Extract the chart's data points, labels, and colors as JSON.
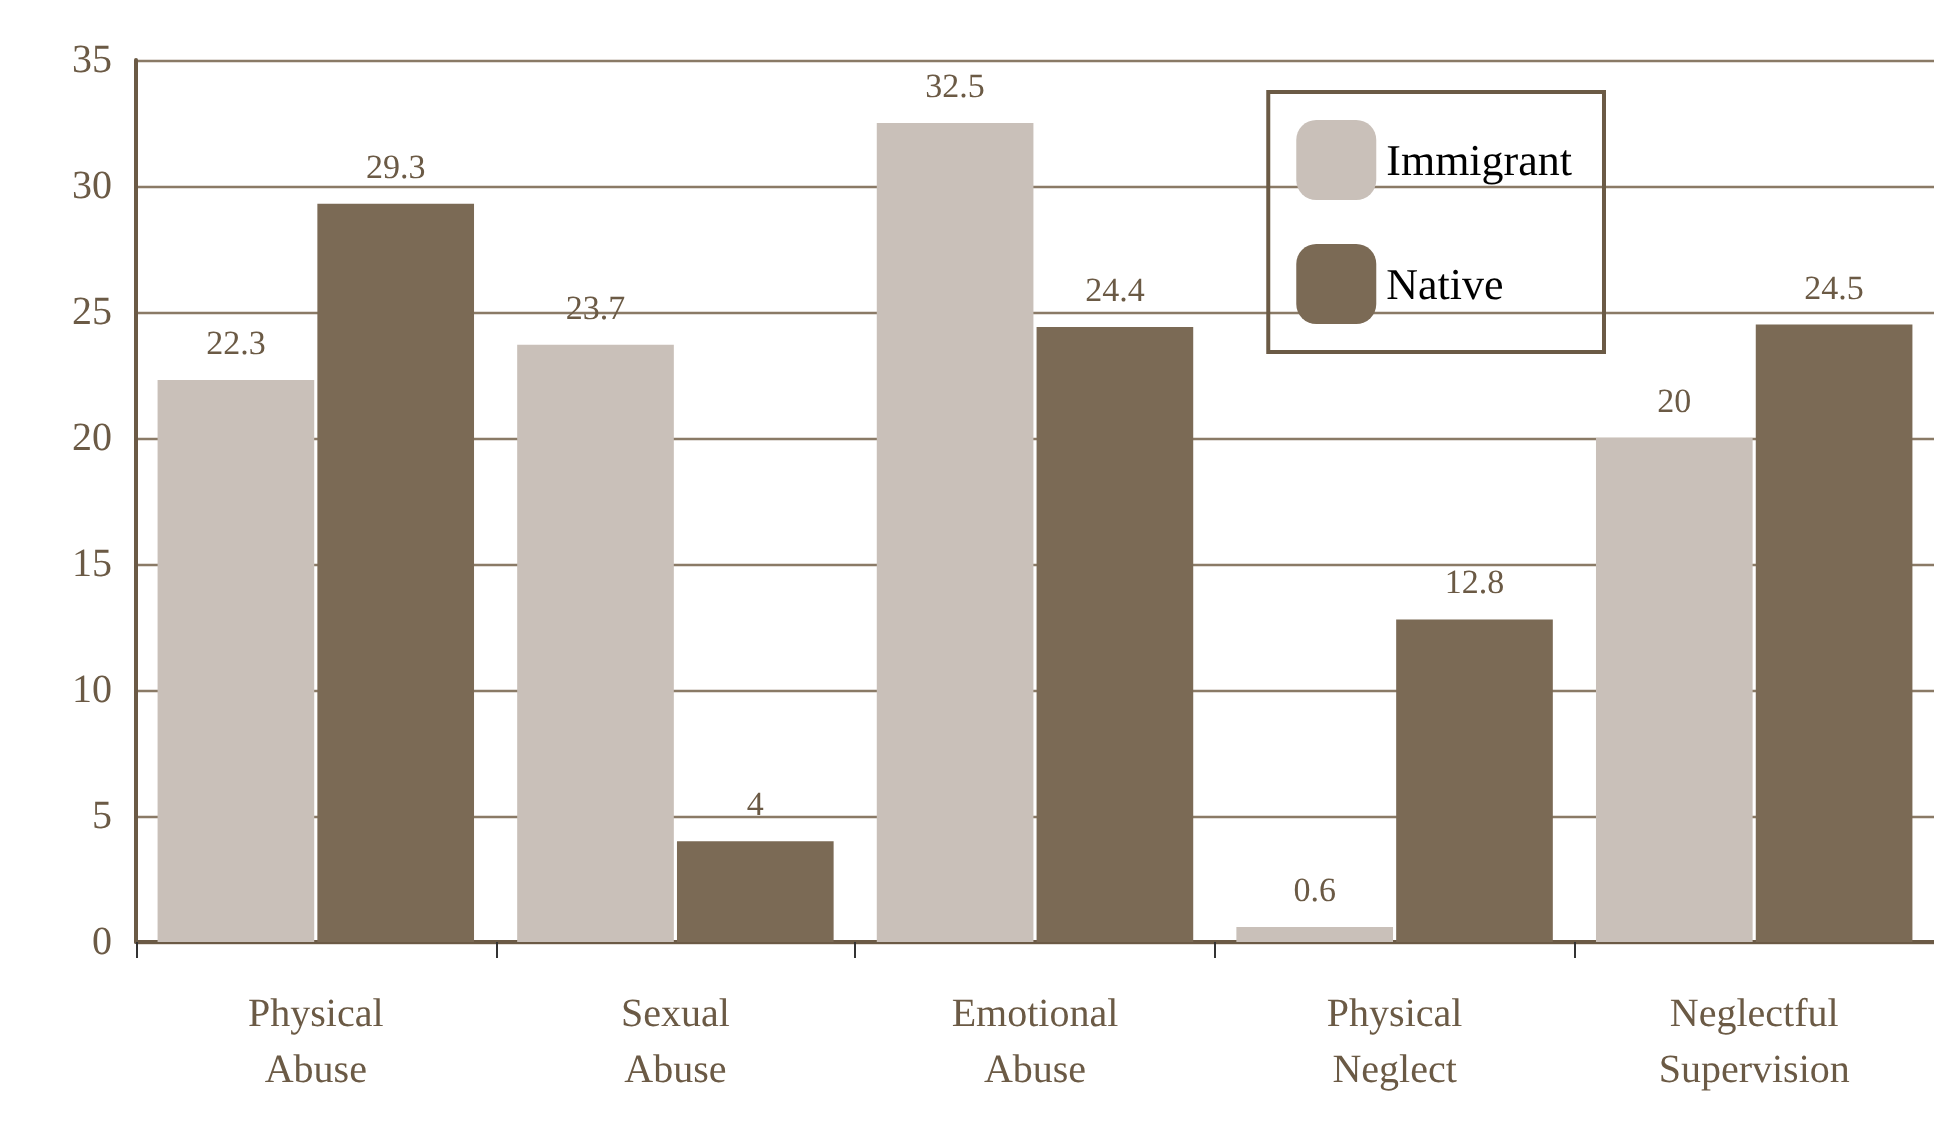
{
  "chart_data": {
    "type": "bar",
    "categories": [
      "Physical Abuse",
      "Sexual Abuse",
      "Emotional Abuse",
      "Physical Neglect",
      "Neglectful Supervision"
    ],
    "series": [
      {
        "name": "Immigrant",
        "color": "#c9c0b9",
        "values": [
          22.3,
          23.7,
          32.5,
          0.6,
          20
        ]
      },
      {
        "name": "Native",
        "color": "#7b6a55",
        "values": [
          29.3,
          4,
          24.4,
          12.8,
          24.5
        ]
      }
    ],
    "ylim": [
      0,
      35
    ],
    "yticks": [
      0,
      5,
      10,
      15,
      20,
      25,
      30,
      35
    ],
    "grid": "y",
    "legend": "top right",
    "data_labels": true
  }
}
